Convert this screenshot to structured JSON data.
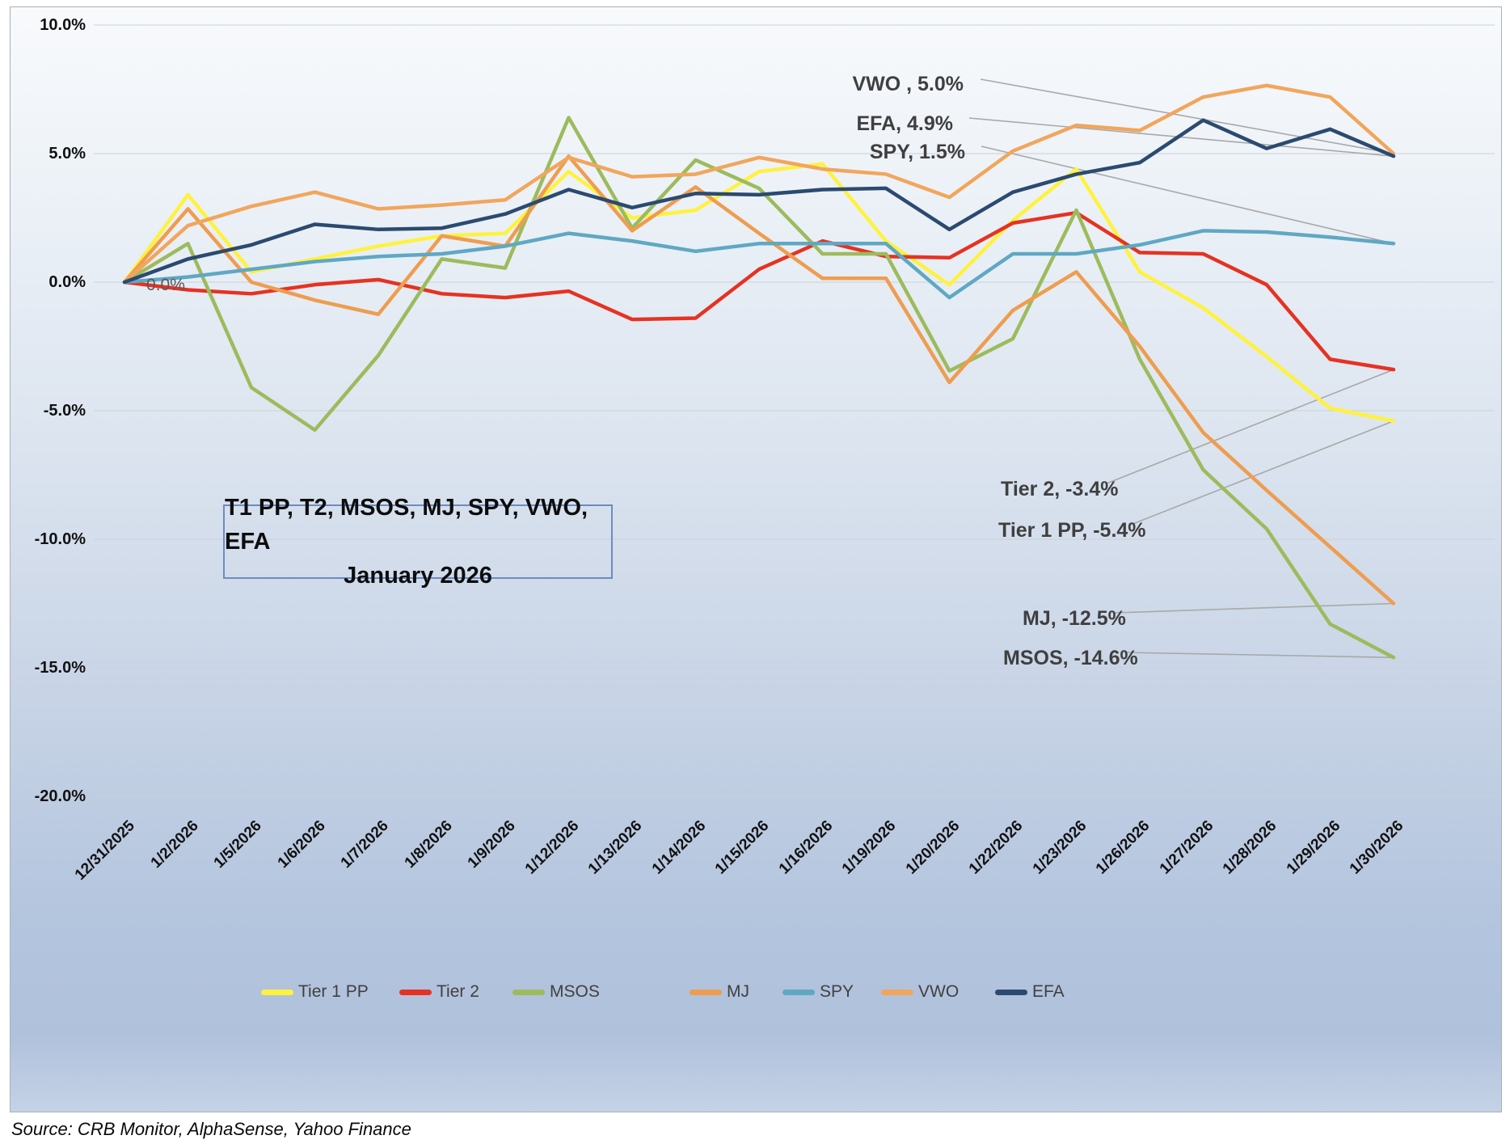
{
  "chart_data": {
    "type": "line",
    "title": "T1 PP, T2, MSOS, MJ, SPY, VWO, EFA",
    "subtitle": "January 2026",
    "legend_position": "bottom",
    "grid": true,
    "ylim": [
      -20,
      10
    ],
    "y_ticks": {
      "values": [
        10,
        5,
        0,
        -5,
        -10,
        -15,
        -20
      ],
      "labels": [
        "10.0%",
        "5.0%",
        "0.0%",
        "-5.0%",
        "-10.0%",
        "-15.0%",
        "-20.0%"
      ]
    },
    "categories": [
      "12/31/2025",
      "1/2/2026",
      "1/5/2026",
      "1/6/2026",
      "1/7/2026",
      "1/8/2026",
      "1/9/2026",
      "1/12/2026",
      "1/13/2026",
      "1/14/2026",
      "1/15/2026",
      "1/16/2026",
      "1/19/2026",
      "1/20/2026",
      "1/22/2026",
      "1/23/2026",
      "1/26/2026",
      "1/27/2026",
      "1/28/2026",
      "1/29/2026",
      "1/30/2026"
    ],
    "series": [
      {
        "name": "Tier 1 PP",
        "color": "#fff23d",
        "values": [
          0,
          3.4,
          0.4,
          0.9,
          1.4,
          1.8,
          1.9,
          4.3,
          2.5,
          2.8,
          4.3,
          4.6,
          1.6,
          -0.1,
          2.4,
          4.4,
          0.4,
          -1.0,
          -2.9,
          -4.9,
          -5.4
        ]
      },
      {
        "name": "Tier 2",
        "color": "#e63222",
        "values": [
          0,
          -0.3,
          -0.45,
          -0.1,
          0.1,
          -0.45,
          -0.6,
          -0.35,
          -1.45,
          -1.4,
          0.5,
          1.6,
          1.0,
          0.95,
          2.3,
          2.7,
          1.15,
          1.1,
          -0.1,
          -3.0,
          -3.4
        ]
      },
      {
        "name": "MSOS",
        "color": "#9cbb5c",
        "values": [
          0,
          1.5,
          -4.1,
          -5.75,
          -2.85,
          0.9,
          0.55,
          6.4,
          2.1,
          4.75,
          3.65,
          1.1,
          1.1,
          -3.45,
          -2.2,
          2.8,
          -3.0,
          -7.3,
          -9.6,
          -13.3,
          -14.6
        ]
      },
      {
        "name": "MJ",
        "color": "#ee9d4f",
        "values": [
          0,
          2.85,
          0.0,
          -0.7,
          -1.25,
          1.8,
          1.4,
          4.9,
          2.0,
          3.7,
          1.9,
          0.15,
          0.15,
          -3.9,
          -1.1,
          0.4,
          -2.5,
          -5.85,
          -8.1,
          -10.3,
          -12.5
        ]
      },
      {
        "name": "SPY",
        "color": "#5fa8c3",
        "values": [
          0,
          0.2,
          0.5,
          0.8,
          1.0,
          1.1,
          1.4,
          1.9,
          1.6,
          1.2,
          1.5,
          1.5,
          1.5,
          -0.6,
          1.1,
          1.1,
          1.45,
          2.0,
          1.95,
          1.75,
          1.5
        ]
      },
      {
        "name": "VWO",
        "color": "#f1a65c",
        "values": [
          0,
          2.2,
          2.95,
          3.5,
          2.85,
          3.0,
          3.2,
          4.85,
          4.1,
          4.2,
          4.85,
          4.4,
          4.2,
          3.3,
          5.1,
          6.1,
          5.9,
          7.2,
          7.65,
          7.2,
          5.0
        ]
      },
      {
        "name": "EFA",
        "color": "#2b4a70",
        "values": [
          0,
          0.9,
          1.45,
          2.25,
          2.05,
          2.1,
          2.65,
          3.6,
          2.9,
          3.45,
          3.4,
          3.6,
          3.65,
          2.05,
          3.5,
          4.2,
          4.65,
          6.3,
          5.2,
          5.95,
          4.9
        ]
      }
    ],
    "annotations": {
      "start": "0.0%",
      "vwo": "VWO , 5.0%",
      "efa": "EFA, 4.9%",
      "spy": "SPY, 1.5%",
      "tier2": "Tier 2, -3.4%",
      "tier1pp": "Tier 1 PP, -5.4%",
      "mj": "MJ, -12.5%",
      "msos": "MSOS, -14.6%"
    }
  },
  "title_box": {
    "line1": "T1 PP, T2, MSOS, MJ, SPY, VWO, EFA",
    "line2": "January 2026"
  },
  "source": "Source: CRB Monitor, AlphaSense, Yahoo Finance",
  "colors": {
    "gridline": "#ccd1d7",
    "leader_line": "#a8a8a8",
    "annotation_text": "#3f3f3f",
    "title_border": "#6c8cbf"
  }
}
